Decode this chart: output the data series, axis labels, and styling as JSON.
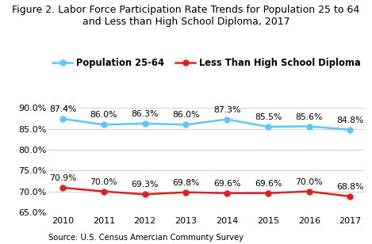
{
  "title": "Figure 2. Labor Force Participation Rate Trends for Population 25 to 64\nand Less than High School Diploma, 2017",
  "years": [
    2010,
    2011,
    2012,
    2013,
    2014,
    2015,
    2016,
    2017
  ],
  "series1_label": "Population 25-64",
  "series1_values": [
    87.4,
    86.0,
    86.3,
    86.0,
    87.3,
    85.5,
    85.6,
    84.8
  ],
  "series1_color": "#5bc8f5",
  "series2_label": "Less Than High School Diploma",
  "series2_values": [
    70.9,
    70.0,
    69.3,
    69.8,
    69.6,
    69.6,
    70.0,
    68.8
  ],
  "series2_color": "#e02020",
  "ylim": [
    65.0,
    92.5
  ],
  "yticks": [
    65.0,
    70.0,
    75.0,
    80.0,
    85.0,
    90.0
  ],
  "source_text": "Source: U.S. Census Amercian Communty Survey",
  "bg_color": "#ffffff",
  "grid_color": "#d0d0d0",
  "title_fontsize": 9.0,
  "label_fontsize": 7.8,
  "tick_fontsize": 8.0,
  "source_fontsize": 7.2,
  "marker_size": 5,
  "line_width": 1.8
}
